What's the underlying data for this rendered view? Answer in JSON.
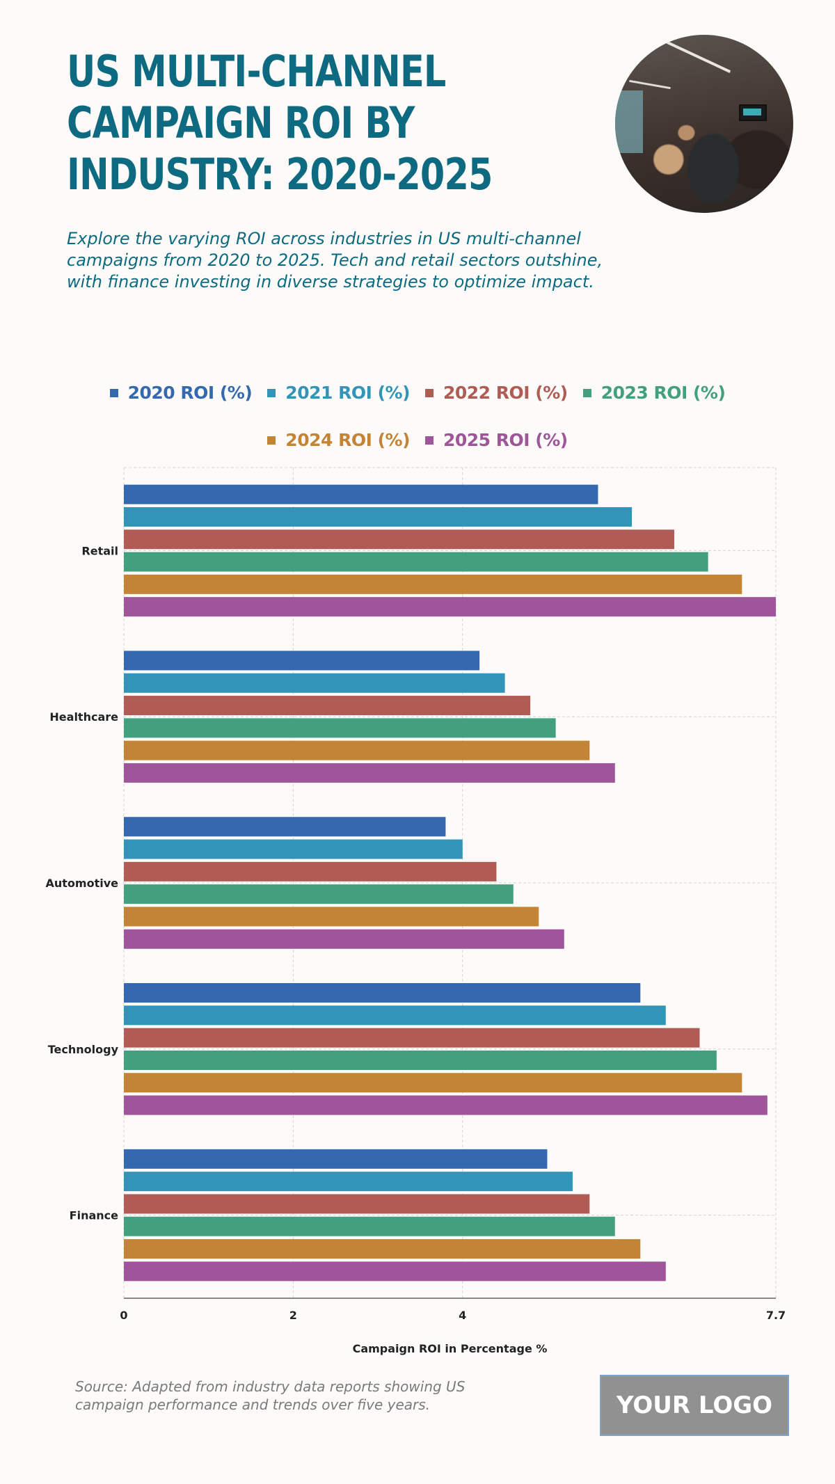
{
  "header": {
    "title": "US Multi-Channel Campaign ROI by Industry: 2020-2025",
    "subtitle": "Explore the varying ROI across industries in US multi-channel campaigns from 2020 to 2025. Tech and retail sectors outshine, with finance investing in diverse strategies to optimize impact.",
    "image_alt": "team meeting photo"
  },
  "footer": {
    "source": "Source: Adapted from industry data reports showing US campaign performance and trends over five years.",
    "logo": "YOUR LOGO"
  },
  "chart_data": {
    "type": "bar",
    "orientation": "horizontal",
    "title": "US Multi-Channel Campaign ROI by Industry: 2020-2025",
    "xlabel": "Campaign ROI in Percentage %",
    "ylabel": "",
    "xlim": [
      0,
      7.7
    ],
    "xticks": [
      "0",
      "2",
      "4",
      "7.7"
    ],
    "xtick_values": [
      0,
      2,
      4,
      7.7
    ],
    "grid": true,
    "legend_position": "top-center",
    "categories": [
      "Retail",
      "Healthcare",
      "Automotive",
      "Technology",
      "Finance"
    ],
    "series": [
      {
        "name": "2020 ROI (%)",
        "color": "#3469b0",
        "values": [
          5.6,
          4.2,
          3.8,
          6.1,
          5.0
        ]
      },
      {
        "name": "2021 ROI (%)",
        "color": "#3294b6",
        "values": [
          6.0,
          4.5,
          4.0,
          6.4,
          5.3
        ]
      },
      {
        "name": "2022 ROI (%)",
        "color": "#b05c55",
        "values": [
          6.5,
          4.8,
          4.4,
          6.8,
          5.5
        ]
      },
      {
        "name": "2023 ROI (%)",
        "color": "#43a07f",
        "values": [
          6.9,
          5.1,
          4.6,
          7.0,
          5.8
        ]
      },
      {
        "name": "2024 ROI (%)",
        "color": "#c38436",
        "values": [
          7.3,
          5.5,
          4.9,
          7.3,
          6.1
        ]
      },
      {
        "name": "2025 ROI (%)",
        "color": "#9e5599",
        "values": [
          7.7,
          5.8,
          5.2,
          7.6,
          6.4
        ]
      }
    ]
  }
}
